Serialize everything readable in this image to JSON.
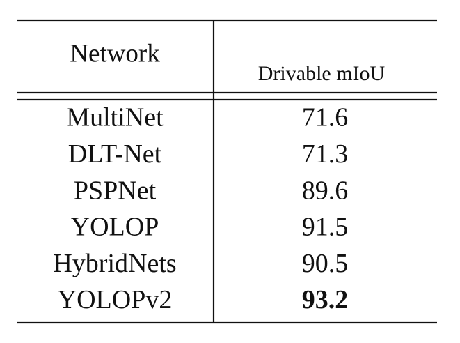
{
  "table": {
    "header": [
      "Network",
      "Drivable mIoU"
    ],
    "rows": [
      [
        "MultiNet",
        71.6
      ],
      [
        "DLT-Net",
        71.3
      ],
      [
        "PSPNet",
        89.6
      ],
      [
        "YOLOP",
        91.5
      ],
      [
        "HybridNets",
        90.5
      ],
      [
        "YOLOPv2",
        93.2
      ]
    ]
  }
}
